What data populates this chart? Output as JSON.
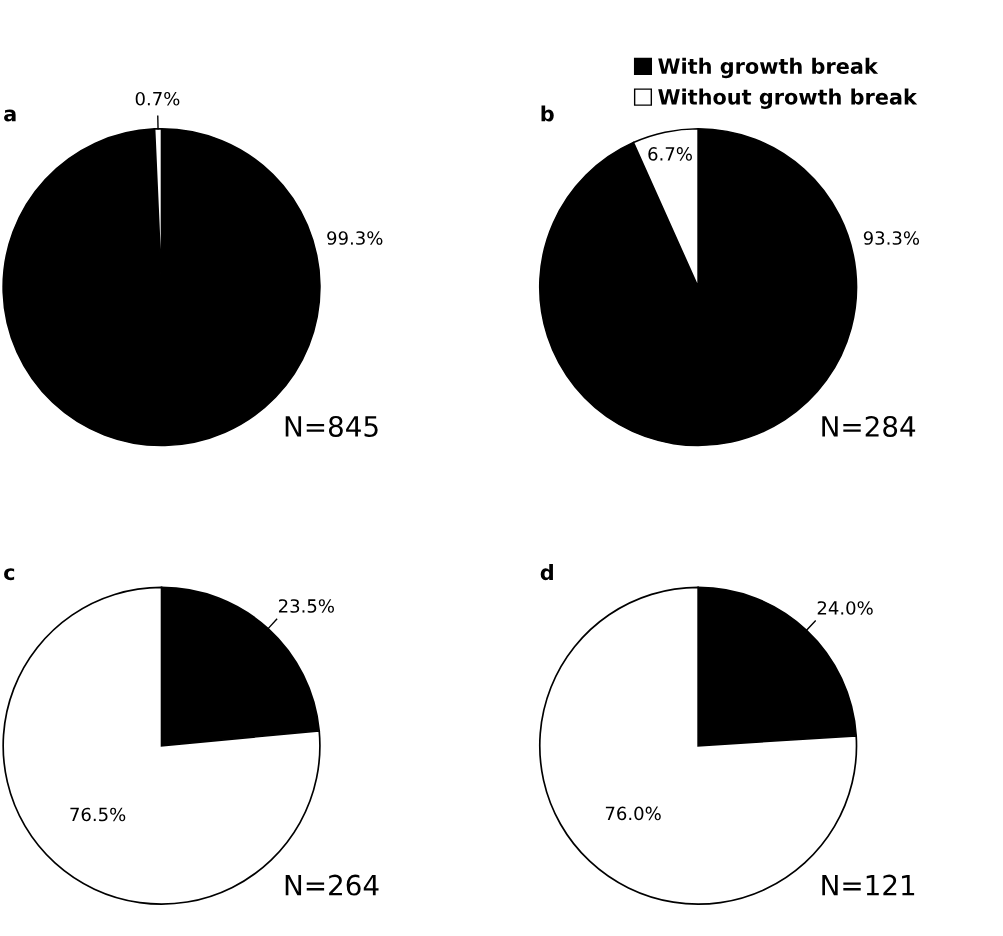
{
  "chart_data": [
    {
      "type": "pie",
      "title": "a",
      "categories": [
        null,
        null
      ],
      "values": [
        99.3,
        0.7
      ],
      "colors": [
        "#000000",
        "#ffffff"
      ],
      "value_labels": [
        "99.3%",
        "0.7%"
      ],
      "annotations": [
        "N=845"
      ],
      "legend": false
    },
    {
      "type": "pie",
      "title": "b",
      "categories": [
        "With growth break",
        "Without growth break"
      ],
      "values": [
        93.3,
        6.7
      ],
      "colors": [
        "#000000",
        "#ffffff"
      ],
      "value_labels": [
        "93.3%",
        "6.7%"
      ],
      "annotations": [
        "N=284"
      ],
      "legend": "top right"
    },
    {
      "type": "pie",
      "title": "c",
      "categories": [
        null,
        null
      ],
      "values": [
        23.5,
        76.5
      ],
      "colors": [
        "#000000",
        "#ffffff"
      ],
      "value_labels": [
        "23.5%",
        "76.5%"
      ],
      "annotations": [
        "N=264"
      ],
      "legend": false
    },
    {
      "type": "pie",
      "title": "d",
      "categories": [
        null,
        null
      ],
      "values": [
        24.0,
        76.0
      ],
      "colors": [
        "#000000",
        "#ffffff"
      ],
      "value_labels": [
        "24.0%",
        "76.0%"
      ],
      "annotations": [
        "N=121"
      ],
      "legend": false
    }
  ]
}
